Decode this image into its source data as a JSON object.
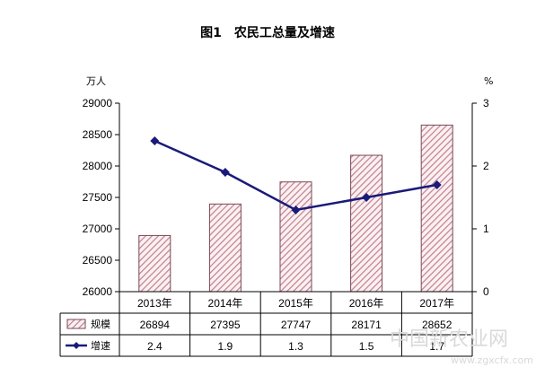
{
  "chart_data": {
    "type": "bar",
    "title": "图1　农民工总量及增速",
    "categories": [
      "2013年",
      "2014年",
      "2015年",
      "2016年",
      "2017年"
    ],
    "series": [
      {
        "name": "规模",
        "type": "bar",
        "axis": "left",
        "values": [
          26894,
          27395,
          27747,
          28171,
          28652
        ],
        "color": "#c0818e"
      },
      {
        "name": "增速",
        "type": "line",
        "axis": "right",
        "values": [
          2.4,
          1.9,
          1.3,
          1.5,
          1.7
        ],
        "color": "#1a1a7a"
      }
    ],
    "y_left": {
      "unit": "万人",
      "min": 26000,
      "max": 29000,
      "ticks": [
        "26000",
        "26500",
        "27000",
        "27500",
        "28000",
        "28500",
        "29000"
      ]
    },
    "y_right": {
      "unit": "%",
      "min": 0,
      "max": 3,
      "ticks": [
        "0",
        "1",
        "2",
        "3"
      ]
    },
    "table_rows": [
      {
        "legend": "规模",
        "cells": [
          "26894",
          "27395",
          "27747",
          "28171",
          "28652"
        ]
      },
      {
        "legend": "增速",
        "cells": [
          "2.4",
          "1.9",
          "1.3",
          "1.5",
          "1.7"
        ]
      }
    ],
    "grid": false,
    "legend": "data-table"
  },
  "watermark": {
    "cn": "中国新农业网",
    "url": "www.zgxcfx.com"
  }
}
